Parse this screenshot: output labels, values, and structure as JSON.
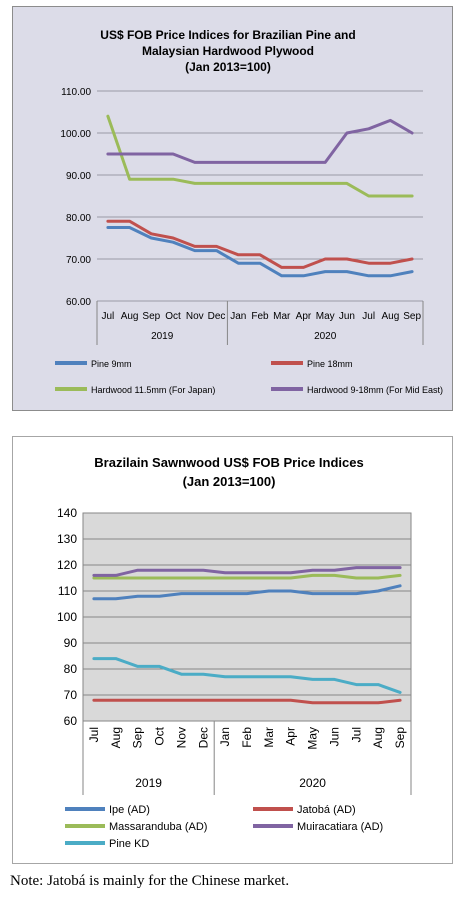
{
  "note": "Note: Jatobá is mainly for the Chinese market.",
  "chart_data": [
    {
      "type": "line",
      "title": [
        "US$ FOB Price Indices for Brazilian Pine and",
        "Malaysian Hardwood Plywood",
        "(Jan 2013=100)"
      ],
      "categories": [
        "Jul",
        "Aug",
        "Sep",
        "Oct",
        "Nov",
        "Dec",
        "Jan",
        "Feb",
        "Mar",
        "Apr",
        "May",
        "Jun",
        "Jul",
        "Aug",
        "Sep"
      ],
      "year_groups": [
        {
          "label": "2019",
          "span": 6
        },
        {
          "label": "2020",
          "span": 9
        }
      ],
      "y_ticks": [
        "60.00",
        "70.00",
        "80.00",
        "90.00",
        "100.00",
        "110.00"
      ],
      "ylim": [
        60,
        110
      ],
      "grid": "horizontal",
      "legend_position": "bottom",
      "series": [
        {
          "name": "Pine 9mm",
          "color": "#4f81bd",
          "values": [
            77.5,
            77.5,
            75,
            74,
            72,
            72,
            69,
            69,
            66,
            66,
            67,
            67,
            66,
            66,
            67
          ]
        },
        {
          "name": "Pine 18mm",
          "color": "#c0504d",
          "values": [
            79,
            79,
            76,
            75,
            73,
            73,
            71,
            71,
            68,
            68,
            70,
            70,
            69,
            69,
            70
          ]
        },
        {
          "name": "Hardwood 11.5mm (For Japan)",
          "color": "#9bbb59",
          "values": [
            104,
            89,
            89,
            89,
            88,
            88,
            88,
            88,
            88,
            88,
            88,
            88,
            85,
            85,
            85
          ]
        },
        {
          "name": "Hardwood 9-18mm (For Mid East)",
          "color": "#8064a2",
          "values": [
            95,
            95,
            95,
            95,
            93,
            93,
            93,
            93,
            93,
            93,
            93,
            100,
            101,
            103,
            100
          ]
        }
      ]
    },
    {
      "type": "line",
      "title": [
        "Brazilain Sawnwood US$ FOB Price Indices",
        "(Jan 2013=100)"
      ],
      "categories": [
        "Jul",
        "Aug",
        "Sep",
        "Oct",
        "Nov",
        "Dec",
        "Jan",
        "Feb",
        "Mar",
        "Apr",
        "May",
        "Jun",
        "Jul",
        "Aug",
        "Sep"
      ],
      "year_groups": [
        {
          "label": "2019",
          "span": 6
        },
        {
          "label": "2020",
          "span": 9
        }
      ],
      "y_ticks": [
        "60",
        "70",
        "80",
        "90",
        "100",
        "110",
        "120",
        "130",
        "140"
      ],
      "ylim": [
        60,
        140
      ],
      "grid": "horizontal",
      "legend_position": "bottom",
      "series": [
        {
          "name": "Ipe (AD)",
          "color": "#4f81bd",
          "values": [
            107,
            107,
            108,
            108,
            109,
            109,
            109,
            109,
            110,
            110,
            109,
            109,
            109,
            110,
            112
          ]
        },
        {
          "name": "Jatobá (AD)",
          "color": "#c0504d",
          "values": [
            68,
            68,
            68,
            68,
            68,
            68,
            68,
            68,
            68,
            68,
            67,
            67,
            67,
            67,
            68
          ]
        },
        {
          "name": "Massaranduba (AD)",
          "color": "#9bbb59",
          "values": [
            115,
            115,
            115,
            115,
            115,
            115,
            115,
            115,
            115,
            115,
            116,
            116,
            115,
            115,
            116
          ]
        },
        {
          "name": "Muiracatiara (AD)",
          "color": "#8064a2",
          "values": [
            116,
            116,
            118,
            118,
            118,
            118,
            117,
            117,
            117,
            117,
            118,
            118,
            119,
            119,
            119
          ]
        },
        {
          "name": "Pine KD",
          "color": "#4bacc6",
          "values": [
            84,
            84,
            81,
            81,
            78,
            78,
            77,
            77,
            77,
            77,
            76,
            76,
            74,
            74,
            71
          ]
        }
      ]
    }
  ]
}
